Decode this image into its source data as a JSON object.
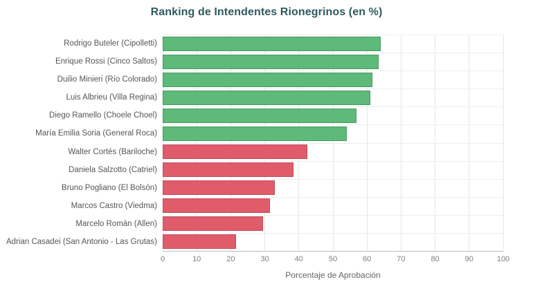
{
  "colors": {
    "title": "#2e5a5e",
    "green_fill": "#5dba78",
    "green_border": "#459a61",
    "red_fill": "#e05c6b",
    "red_border": "#c14a59",
    "grid": "#e7e7e7",
    "hgrid": "#eeeeee",
    "axis_line": "#bcbcbc",
    "label_text": "#555555",
    "tick_text": "#7d7d7d",
    "axis_title_text": "#666666"
  },
  "chart_data": {
    "type": "bar",
    "orientation": "horizontal",
    "title": "Ranking de Intendentes Rionegrinos (en %)",
    "xlabel": "Porcentaje de Aprobación",
    "ylabel": "",
    "xlim": [
      0,
      100
    ],
    "xticks": [
      0,
      10,
      20,
      30,
      40,
      50,
      60,
      70,
      80,
      90,
      100
    ],
    "grid": true,
    "legend": "none",
    "categories": [
      "Rodrigo Buteler (Cipolletti)",
      "Enrique Rossi (Cinco Saltos)",
      "Duilio Minieri (Río Colorado)",
      "Luis Albrieu (Villa Regina)",
      "Diego Ramello (Choele Choel)",
      "María Emilia Soria (General Roca)",
      "Walter Cortés (Bariloche)",
      "Daniela Salzotto (Catriel)",
      "Bruno Pogliano (El Bolsón)",
      "Marcos Castro (Viedma)",
      "Marcelo Román (Allen)",
      "Adrian Casadei (San Antonio - Las Grutas)"
    ],
    "values": [
      64,
      63.5,
      61.5,
      61,
      57,
      54,
      42.5,
      38.5,
      33,
      31.5,
      29.5,
      21.5
    ],
    "bar_colors": [
      "green",
      "green",
      "green",
      "green",
      "green",
      "green",
      "red",
      "red",
      "red",
      "red",
      "red",
      "red"
    ]
  }
}
